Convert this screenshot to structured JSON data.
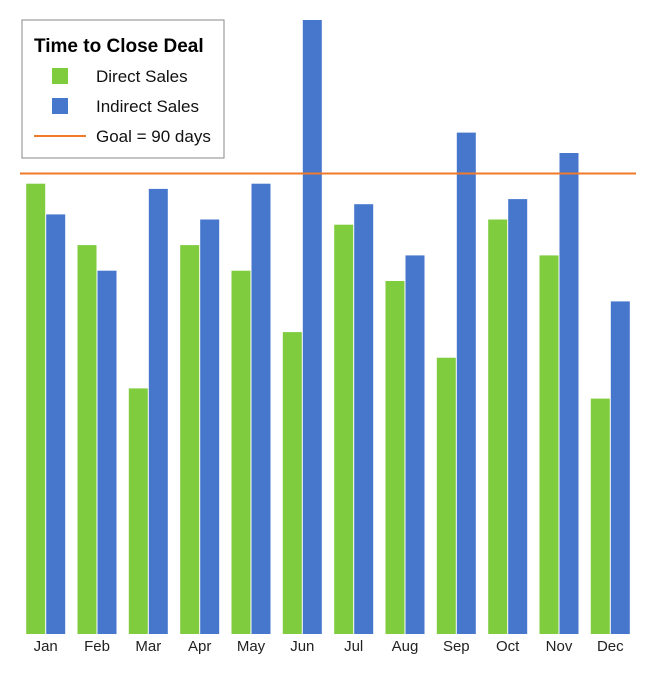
{
  "chart_data": {
    "type": "bar",
    "title": "Time to Close Deal",
    "xlabel": "",
    "ylabel": "",
    "ylim": [
      0,
      120
    ],
    "grid": false,
    "legend_position": "top-left",
    "categories": [
      "Jan",
      "Feb",
      "Mar",
      "Apr",
      "May",
      "Jun",
      "Jul",
      "Aug",
      "Sep",
      "Oct",
      "Nov",
      "Dec"
    ],
    "series": [
      {
        "name": "Direct Sales",
        "color": "#7fcc3f",
        "values": [
          88,
          76,
          48,
          76,
          71,
          59,
          80,
          69,
          54,
          81,
          74,
          46
        ]
      },
      {
        "name": "Indirect Sales",
        "color": "#4677cc",
        "values": [
          82,
          71,
          87,
          81,
          88,
          120,
          84,
          74,
          98,
          85,
          94,
          65
        ]
      }
    ],
    "goal": {
      "label": "Goal = 90 days",
      "value": 90,
      "color": "#f07a2a"
    }
  }
}
